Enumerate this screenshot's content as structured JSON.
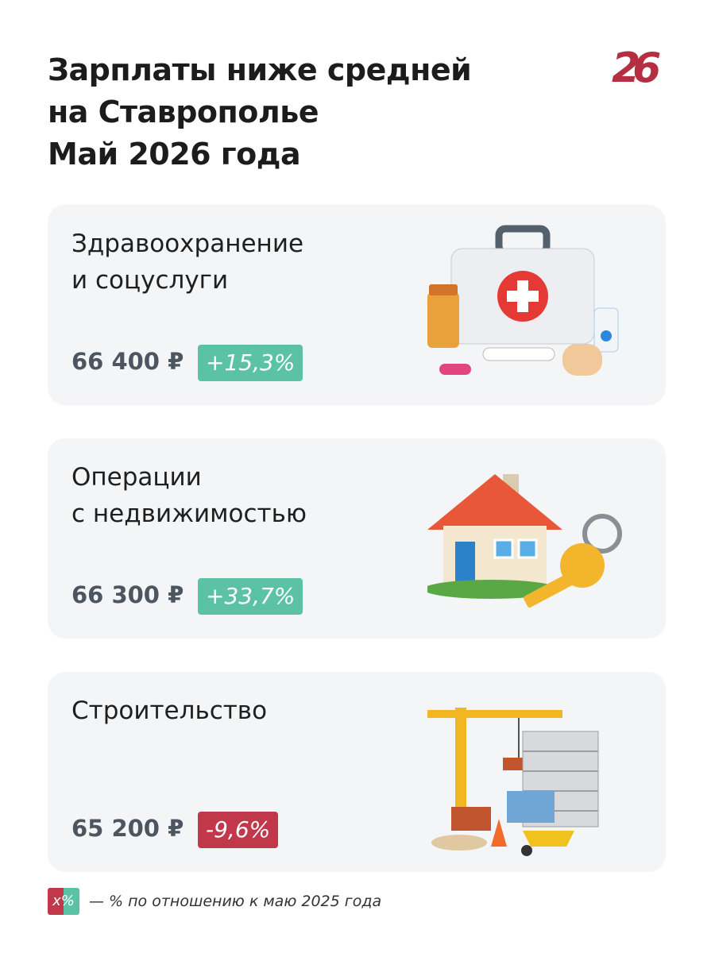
{
  "header": {
    "title_lines": [
      "Зарплаты ниже средней",
      "на Ставрополье",
      "Май 2026 года"
    ],
    "logo": "26"
  },
  "cards": [
    {
      "title_lines": [
        "Здравоохранение",
        "и соцуслуги"
      ],
      "salary": "66 400 ₽",
      "change": "+15,3%",
      "color": "#5bc2a6"
    },
    {
      "title_lines": [
        "Операции",
        "с недвижимостью"
      ],
      "salary": "66 300 ₽",
      "change": "+33,7%",
      "color": "#5bc2a6"
    },
    {
      "title_lines": [
        "Строительство"
      ],
      "salary": "65 200 ₽",
      "change": "-9,6%",
      "color": "#c0384a"
    }
  ],
  "legend": {
    "badge": "x%",
    "text": "— % по отношению к маю 2025 года"
  }
}
